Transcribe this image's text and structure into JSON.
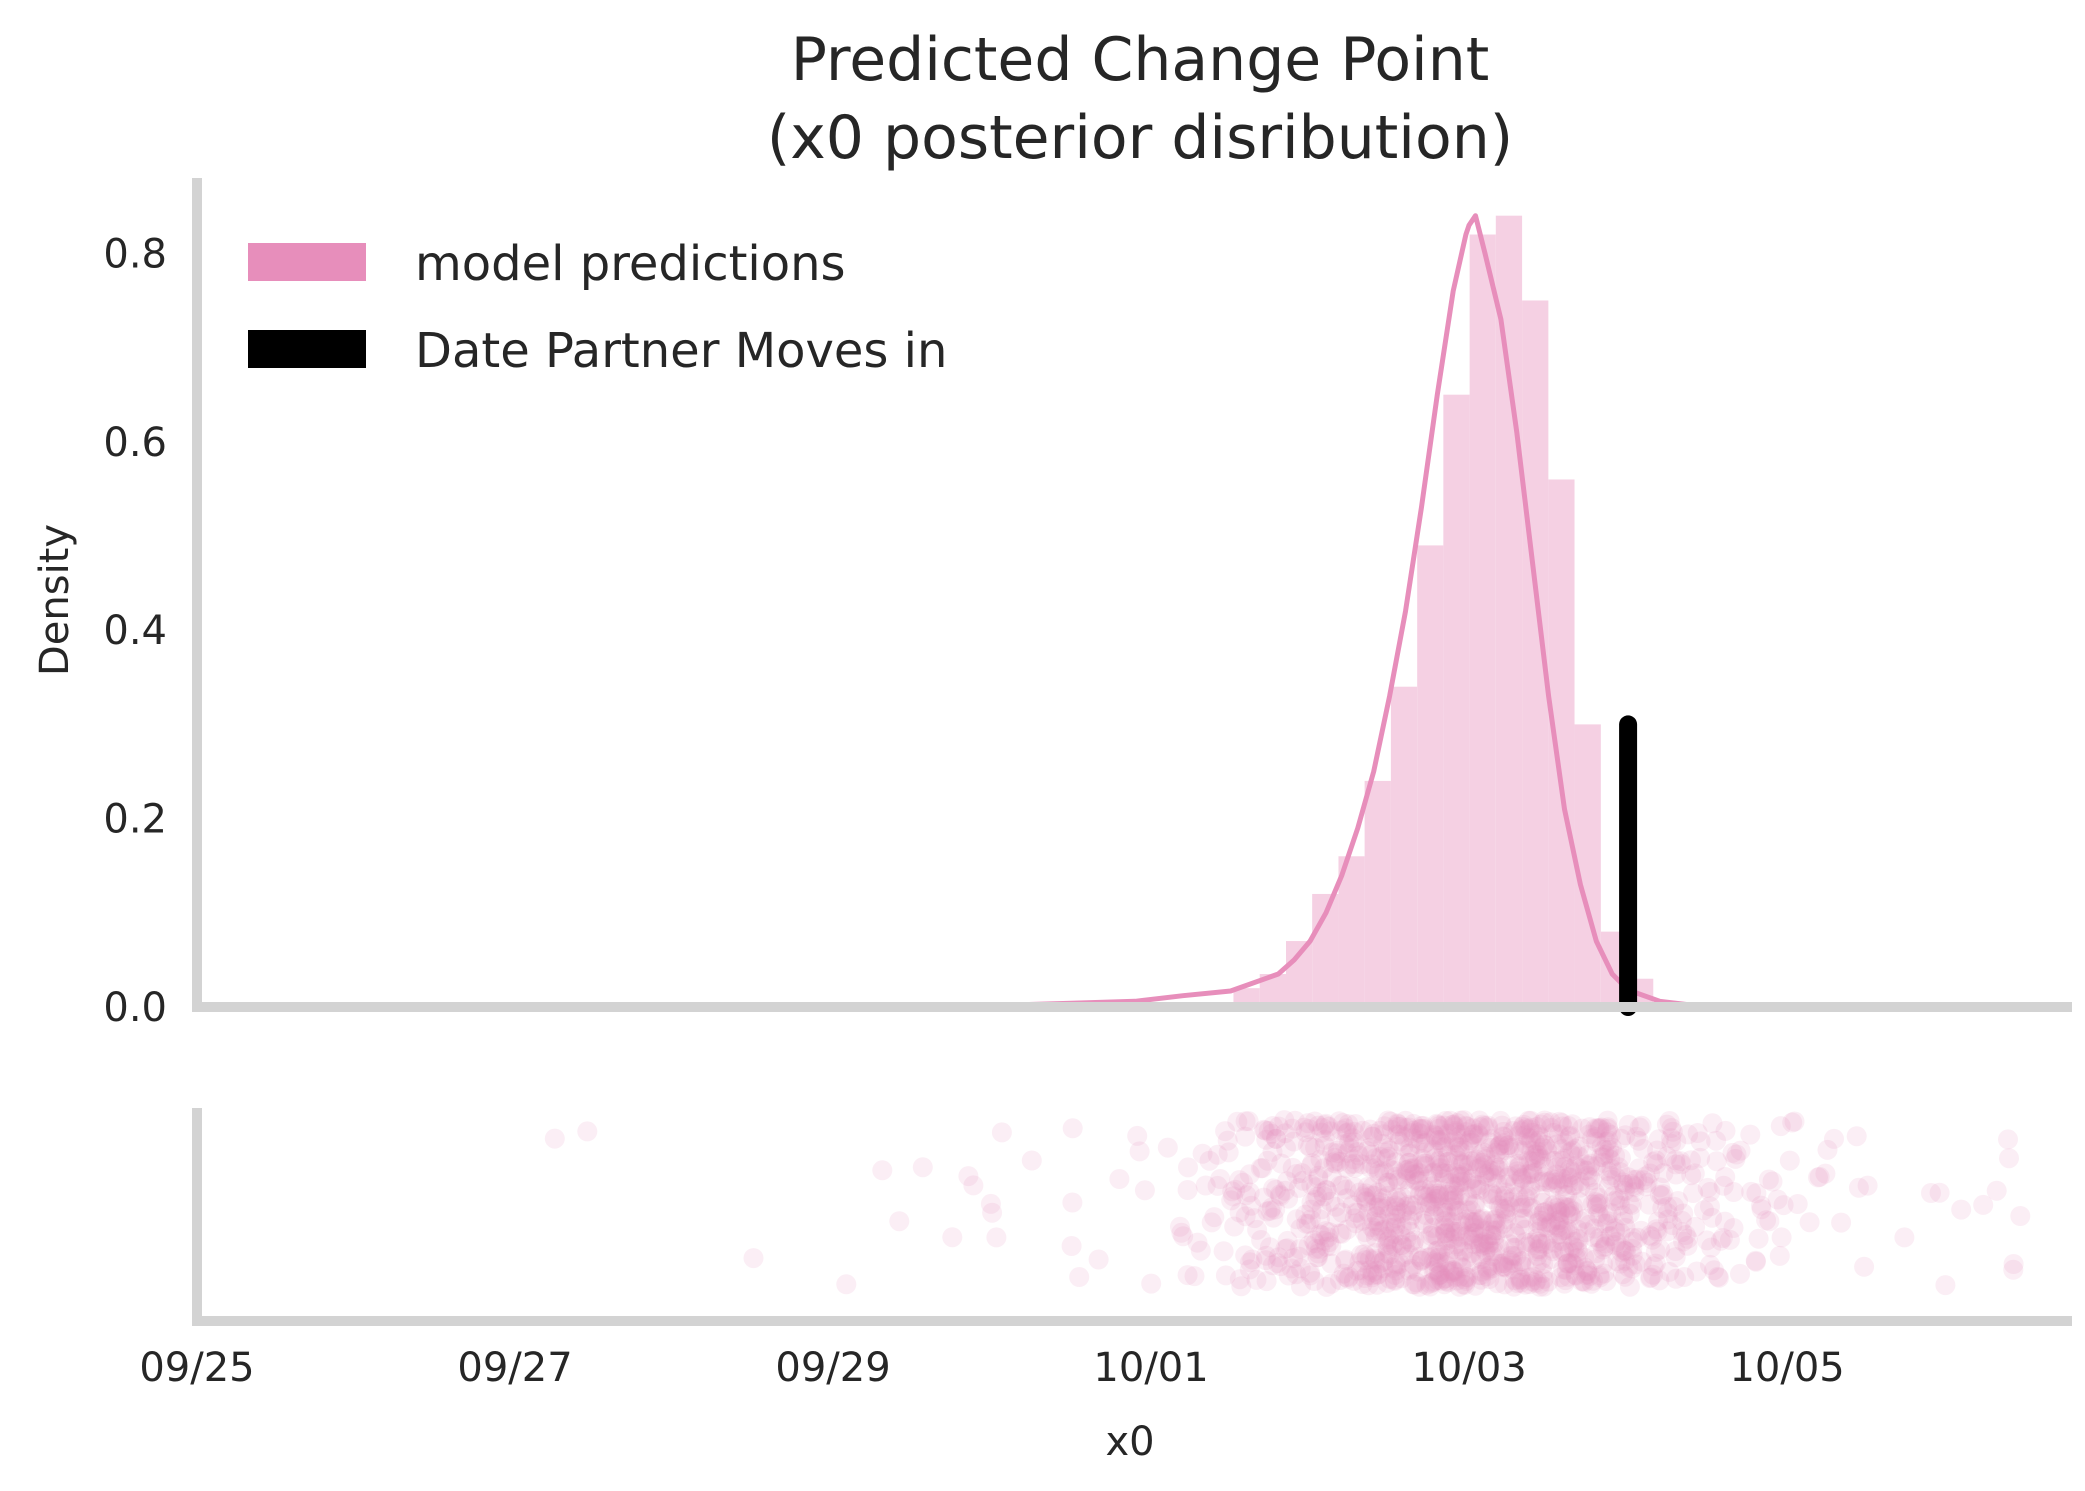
{
  "chart_data": {
    "type": "bar",
    "title": "Predicted Change Point",
    "subtitle": "(x0 posterior disribution)",
    "xlabel": "x0",
    "ylabel": "Density",
    "x_type": "date",
    "xlim": [
      "09/25",
      "10/06 19:00"
    ],
    "x_tick_labels": [
      "09/25",
      "09/27",
      "09/29",
      "10/01",
      "10/03",
      "10/05"
    ],
    "ylim": [
      0,
      0.88
    ],
    "y_tick_labels": [
      "0.0",
      "0.2",
      "0.4",
      "0.6",
      "0.8"
    ],
    "grid": false,
    "legend_position": "top-left",
    "colors": {
      "prediction": "#e78ebb",
      "prediction_bar": "#f5d0e3",
      "partner": "#000000",
      "spine": "#d3d3d3"
    },
    "histogram": {
      "name": "model predictions",
      "bin_edges": [
        "10/01 12:26",
        "10/01 16:24",
        "10/01 20:22",
        "10/02 00:19",
        "10/02 04:17",
        "10/02 08:14",
        "10/02 12:12",
        "10/02 16:10",
        "10/02 20:07",
        "10/03 00:05",
        "10/03 04:02",
        "10/03 08:00",
        "10/03 11:58",
        "10/03 15:55",
        "10/03 19:53",
        "10/03 23:50",
        "10/04 03:48"
      ],
      "densities": [
        0.02,
        0.035,
        0.07,
        0.12,
        0.16,
        0.24,
        0.34,
        0.49,
        0.65,
        0.82,
        0.84,
        0.75,
        0.56,
        0.3,
        0.08,
        0.03
      ]
    },
    "kde": {
      "x": [
        "09/29 16:48",
        "09/30 02:24",
        "09/30 12:00",
        "09/30 21:36",
        "10/01 04:48",
        "10/01 12:00",
        "10/01 19:12",
        "10/01 21:36",
        "10/02 00:00",
        "10/02 02:24",
        "10/02 04:48",
        "10/02 07:12",
        "10/02 09:36",
        "10/02 12:00",
        "10/02 14:24",
        "10/02 16:48",
        "10/02 19:12",
        "10/02 21:36",
        "10/02 23:31",
        "10/03 00:00",
        "10/03 00:58",
        "10/03 02:24",
        "10/03 04:48",
        "10/03 07:12",
        "10/03 09:36",
        "10/03 12:00",
        "10/03 14:24",
        "10/03 16:48",
        "10/03 19:12",
        "10/03 21:36",
        "10/04 00:00",
        "10/04 04:48",
        "10/04 09:36",
        "10/04 14:24",
        "10/04 21:36",
        "10/05 12:00"
      ],
      "y": [
        0.001,
        0.002,
        0.004,
        0.006,
        0.012,
        0.017,
        0.035,
        0.05,
        0.07,
        0.1,
        0.14,
        0.19,
        0.25,
        0.33,
        0.42,
        0.53,
        0.65,
        0.76,
        0.82,
        0.83,
        0.84,
        0.8,
        0.73,
        0.61,
        0.47,
        0.33,
        0.21,
        0.13,
        0.07,
        0.035,
        0.018,
        0.006,
        0.002,
        0.001,
        0.0,
        0.0
      ]
    },
    "partner_move_in": {
      "name": "Date Partner Moves in",
      "x": "10/04",
      "y": 0.3
    },
    "rug": {
      "x_mean": "10/03",
      "x_sd_hours": 18,
      "point_count": 1400,
      "outliers": [
        "09/27 06:00",
        "09/28 12:00",
        "09/29 02:00",
        "09/29 10:00",
        "09/29 18:00",
        "09/30 00:00",
        "09/30 06:00",
        "09/30 12:00"
      ]
    }
  }
}
